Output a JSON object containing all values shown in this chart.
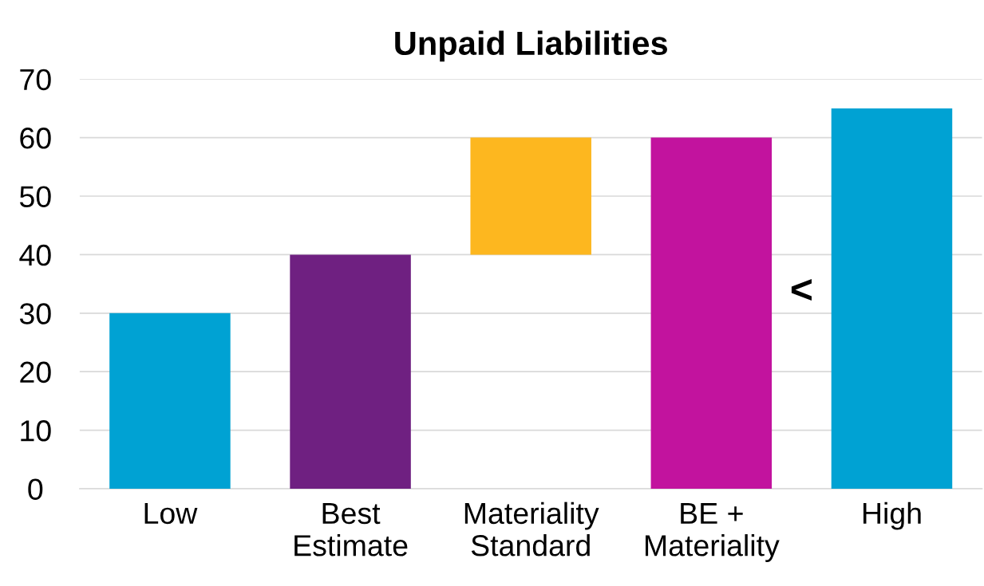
{
  "chart_data": {
    "type": "bar",
    "title": "Unpaid Liabilities",
    "categories": [
      "Low",
      "Best\nEstimate",
      "Materiality\nStandard",
      "BE +\nMateriality",
      "High"
    ],
    "values": [
      30,
      40,
      20,
      60,
      65
    ],
    "base": [
      0,
      0,
      40,
      0,
      0
    ],
    "colors": [
      "#00a2d3",
      "#6f2081",
      "#fdb71f",
      "#c2139e",
      "#00a2d3"
    ],
    "ylim": [
      0,
      70
    ],
    "yticks": [
      0,
      10,
      20,
      30,
      40,
      50,
      60,
      70
    ],
    "grid": "y",
    "legend": false,
    "annotations": [
      "<"
    ]
  }
}
